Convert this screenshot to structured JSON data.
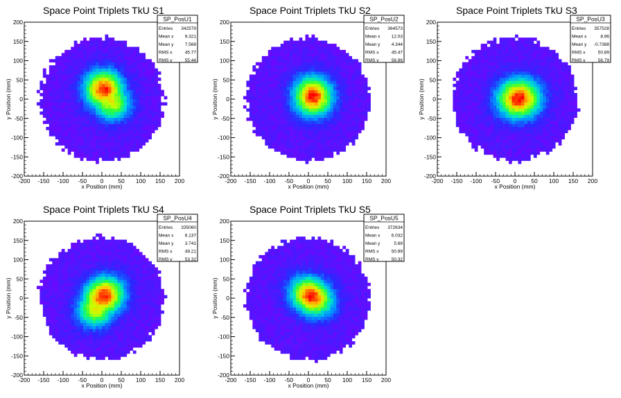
{
  "chart_data": [
    {
      "type": "heatmap",
      "title": "Space Point Triplets TkU S1",
      "xlabel": "x Position (mm)",
      "ylabel": "y Position (mm)",
      "xlim": [
        -200,
        200
      ],
      "ylim": [
        -200,
        200
      ],
      "xticks": [
        "-200",
        "-150",
        "-100",
        "-50",
        "0",
        "50",
        "100",
        "150",
        "200"
      ],
      "yticks": [
        "-200",
        "-150",
        "-100",
        "-50",
        "0",
        "50",
        "100",
        "150",
        "200"
      ],
      "stats": {
        "name": "SP_PosU1",
        "rows": [
          {
            "label": "Entries",
            "value": "342579"
          },
          {
            "label": "Mean x",
            "value": "9.321"
          },
          {
            "label": "Mean y",
            "value": "7.568"
          },
          {
            "label": "RMS x",
            "value": "45.77"
          },
          {
            "label": "RMS y",
            "value": "55.44"
          }
        ]
      },
      "shape": {
        "boundary_radius": 160,
        "core_x": 5,
        "core_y": 25,
        "spread_x": 45,
        "spread_y": 55,
        "tilt_deg": 30,
        "secondary_x": 30,
        "secondary_y": -15
      }
    },
    {
      "type": "heatmap",
      "title": "Space Point Triplets TkU S2",
      "xlabel": "x Position (mm)",
      "ylabel": "y Position (mm)",
      "xlim": [
        -200,
        200
      ],
      "ylim": [
        -200,
        200
      ],
      "xticks": [
        "-200",
        "-150",
        "-100",
        "-50",
        "0",
        "50",
        "100",
        "150",
        "200"
      ],
      "yticks": [
        "-200",
        "-150",
        "-100",
        "-50",
        "0",
        "50",
        "100",
        "150",
        "200"
      ],
      "stats": {
        "name": "SP_PosU2",
        "rows": [
          {
            "label": "Entries",
            "value": "364573"
          },
          {
            "label": "Mean x",
            "value": "12.03"
          },
          {
            "label": "Mean y",
            "value": "4.344"
          },
          {
            "label": "RMS x",
            "value": "45.47"
          },
          {
            "label": "RMS y",
            "value": "56.96"
          }
        ]
      },
      "shape": {
        "boundary_radius": 160,
        "core_x": 12,
        "core_y": 8,
        "spread_x": 45,
        "spread_y": 57,
        "tilt_deg": 10,
        "secondary_x": 12,
        "secondary_y": 0
      }
    },
    {
      "type": "heatmap",
      "title": "Space Point Triplets TkU S3",
      "xlabel": "x Position (mm)",
      "ylabel": "y Position (mm)",
      "xlim": [
        -200,
        200
      ],
      "ylim": [
        -200,
        200
      ],
      "xticks": [
        "-200",
        "-150",
        "-100",
        "-50",
        "0",
        "50",
        "100",
        "150",
        "200"
      ],
      "yticks": [
        "-200",
        "-150",
        "-100",
        "-50",
        "0",
        "50",
        "100",
        "150",
        "200"
      ],
      "stats": {
        "name": "SP_PosU3",
        "rows": [
          {
            "label": "Entries",
            "value": "357528"
          },
          {
            "label": "Mean x",
            "value": "8.96"
          },
          {
            "label": "Mean y",
            "value": "-0.7388"
          },
          {
            "label": "RMS x",
            "value": "50.89"
          },
          {
            "label": "RMS y",
            "value": "56.79"
          }
        ]
      },
      "shape": {
        "boundary_radius": 160,
        "core_x": 10,
        "core_y": 2,
        "spread_x": 51,
        "spread_y": 57,
        "tilt_deg": 5,
        "secondary_x": 10,
        "secondary_y": 0
      }
    },
    {
      "type": "heatmap",
      "title": "Space Point Triplets TkU S4",
      "xlabel": "x Position (mm)",
      "ylabel": "y Position (mm)",
      "xlim": [
        -200,
        200
      ],
      "ylim": [
        -200,
        200
      ],
      "xticks": [
        "-200",
        "-150",
        "-100",
        "-50",
        "0",
        "50",
        "100",
        "150",
        "200"
      ],
      "yticks": [
        "-200",
        "-150",
        "-100",
        "-50",
        "0",
        "50",
        "100",
        "150",
        "200"
      ],
      "stats": {
        "name": "SP_PosU4",
        "rows": [
          {
            "label": "Entries",
            "value": "335060"
          },
          {
            "label": "Mean x",
            "value": "6.137"
          },
          {
            "label": "Mean y",
            "value": "3.741"
          },
          {
            "label": "RMS x",
            "value": "49.21"
          },
          {
            "label": "RMS y",
            "value": "53.32"
          }
        ]
      },
      "shape": {
        "boundary_radius": 160,
        "core_x": 5,
        "core_y": 5,
        "spread_x": 49,
        "spread_y": 53,
        "tilt_deg": 35,
        "secondary_x": -20,
        "secondary_y": -35
      }
    },
    {
      "type": "heatmap",
      "title": "Space Point Triplets TkU S5",
      "xlabel": "x Position (mm)",
      "ylabel": "y Position (mm)",
      "xlim": [
        -200,
        200
      ],
      "ylim": [
        -200,
        200
      ],
      "xticks": [
        "-200",
        "-150",
        "-100",
        "-50",
        "0",
        "50",
        "100",
        "150",
        "200"
      ],
      "yticks": [
        "-200",
        "-150",
        "-100",
        "-50",
        "0",
        "50",
        "100",
        "150",
        "200"
      ],
      "stats": {
        "name": "SP_PosU5",
        "rows": [
          {
            "label": "Entries",
            "value": "372634"
          },
          {
            "label": "Mean x",
            "value": "6.032"
          },
          {
            "label": "Mean y",
            "value": "5.68"
          },
          {
            "label": "RMS x",
            "value": "50.99"
          },
          {
            "label": "RMS y",
            "value": "50.32"
          }
        ]
      },
      "shape": {
        "boundary_radius": 160,
        "core_x": 8,
        "core_y": 5,
        "spread_x": 51,
        "spread_y": 50,
        "tilt_deg": -35,
        "secondary_x": 8,
        "secondary_y": 5
      }
    }
  ]
}
